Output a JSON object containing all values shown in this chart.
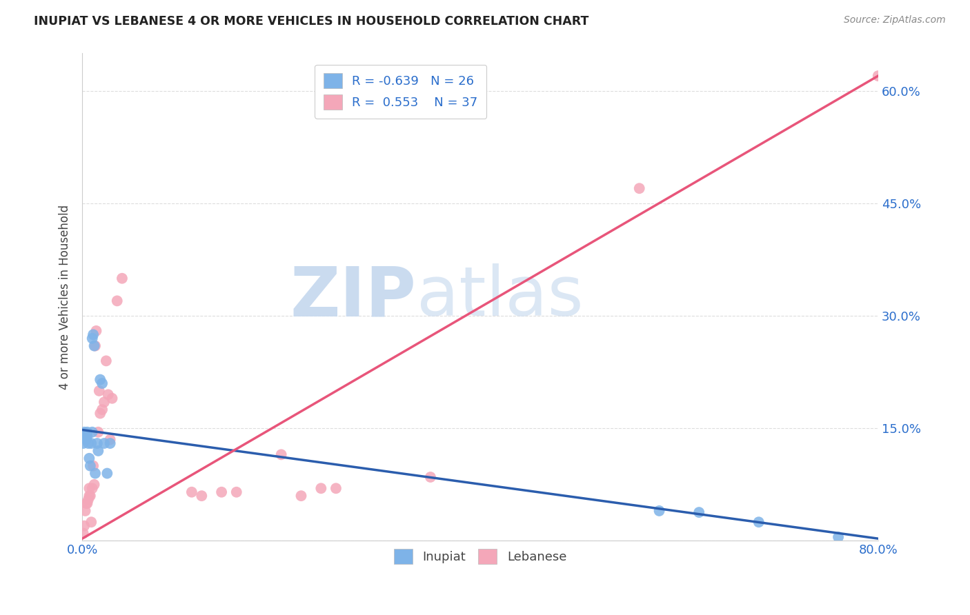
{
  "title": "INUPIAT VS LEBANESE 4 OR MORE VEHICLES IN HOUSEHOLD CORRELATION CHART",
  "source": "Source: ZipAtlas.com",
  "xlabel": "",
  "ylabel": "4 or more Vehicles in Household",
  "xlim": [
    0.0,
    0.8
  ],
  "ylim": [
    0.0,
    0.65
  ],
  "xticks": [
    0.0,
    0.1,
    0.2,
    0.3,
    0.4,
    0.5,
    0.6,
    0.7,
    0.8
  ],
  "xticklabels": [
    "0.0%",
    "",
    "",
    "",
    "",
    "",
    "",
    "",
    "80.0%"
  ],
  "yticks_right": [
    0.0,
    0.15,
    0.3,
    0.45,
    0.6
  ],
  "ytick_right_labels": [
    "",
    "15.0%",
    "30.0%",
    "45.0%",
    "60.0%"
  ],
  "legend_r_inupiat": "-0.639",
  "legend_n_inupiat": "26",
  "legend_r_lebanese": "0.553",
  "legend_n_lebanese": "37",
  "inupiat_color": "#7EB3E8",
  "lebanese_color": "#F4A7B9",
  "inupiat_line_color": "#2B5DAD",
  "lebanese_line_color": "#E8557A",
  "watermark": "ZIPatlas",
  "watermark_color": "#C8D8F0",
  "background_color": "#FFFFFF",
  "grid_color": "#DDDDDD",
  "inupiat_x": [
    0.001,
    0.002,
    0.003,
    0.004,
    0.005,
    0.005,
    0.006,
    0.007,
    0.008,
    0.009,
    0.01,
    0.01,
    0.011,
    0.012,
    0.013,
    0.015,
    0.016,
    0.018,
    0.02,
    0.022,
    0.025,
    0.028,
    0.58,
    0.62,
    0.68,
    0.76
  ],
  "inupiat_y": [
    0.13,
    0.145,
    0.14,
    0.135,
    0.145,
    0.14,
    0.13,
    0.11,
    0.1,
    0.13,
    0.145,
    0.27,
    0.275,
    0.26,
    0.09,
    0.13,
    0.12,
    0.215,
    0.21,
    0.13,
    0.09,
    0.13,
    0.04,
    0.038,
    0.025,
    0.005
  ],
  "lebanese_x": [
    0.001,
    0.002,
    0.003,
    0.004,
    0.005,
    0.006,
    0.007,
    0.007,
    0.008,
    0.009,
    0.01,
    0.011,
    0.012,
    0.013,
    0.014,
    0.016,
    0.017,
    0.018,
    0.02,
    0.022,
    0.024,
    0.026,
    0.028,
    0.03,
    0.035,
    0.04,
    0.11,
    0.12,
    0.14,
    0.155,
    0.2,
    0.22,
    0.24,
    0.255,
    0.35,
    0.56,
    0.8
  ],
  "lebanese_y": [
    0.01,
    0.02,
    0.04,
    0.05,
    0.05,
    0.055,
    0.07,
    0.06,
    0.06,
    0.025,
    0.07,
    0.1,
    0.075,
    0.26,
    0.28,
    0.145,
    0.2,
    0.17,
    0.175,
    0.185,
    0.24,
    0.195,
    0.135,
    0.19,
    0.32,
    0.35,
    0.065,
    0.06,
    0.065,
    0.065,
    0.115,
    0.06,
    0.07,
    0.07,
    0.085,
    0.47,
    0.62
  ],
  "leb_line_x": [
    0.0,
    0.8
  ],
  "leb_line_y": [
    0.003,
    0.62
  ],
  "inp_line_x": [
    0.0,
    0.8
  ],
  "inp_line_y": [
    0.148,
    0.003
  ]
}
